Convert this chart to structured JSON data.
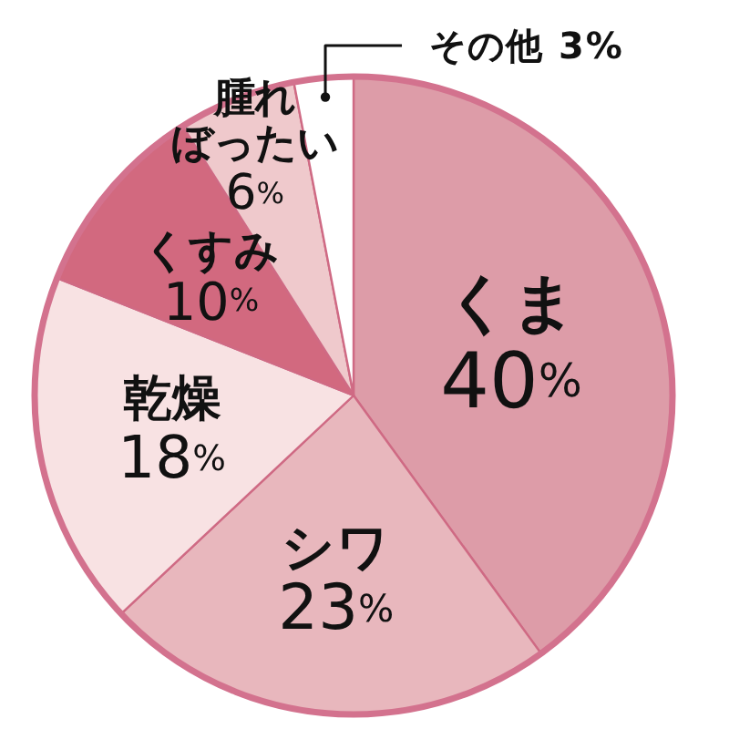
{
  "chart_data": {
    "type": "pie",
    "categories": [
      "くま",
      "シワ",
      "乾燥",
      "くすみ",
      "腫れぼったい",
      "その他"
    ],
    "values": [
      40,
      23,
      18,
      10,
      6,
      3
    ],
    "colors": [
      "#dd9ca8",
      "#e8b7bd",
      "#f8e2e3",
      "#d2697f",
      "#efc9cc",
      "#ffffff"
    ],
    "value_labels": [
      "40%",
      "23%",
      "18%",
      "10%",
      "6%",
      "3%"
    ]
  }
}
